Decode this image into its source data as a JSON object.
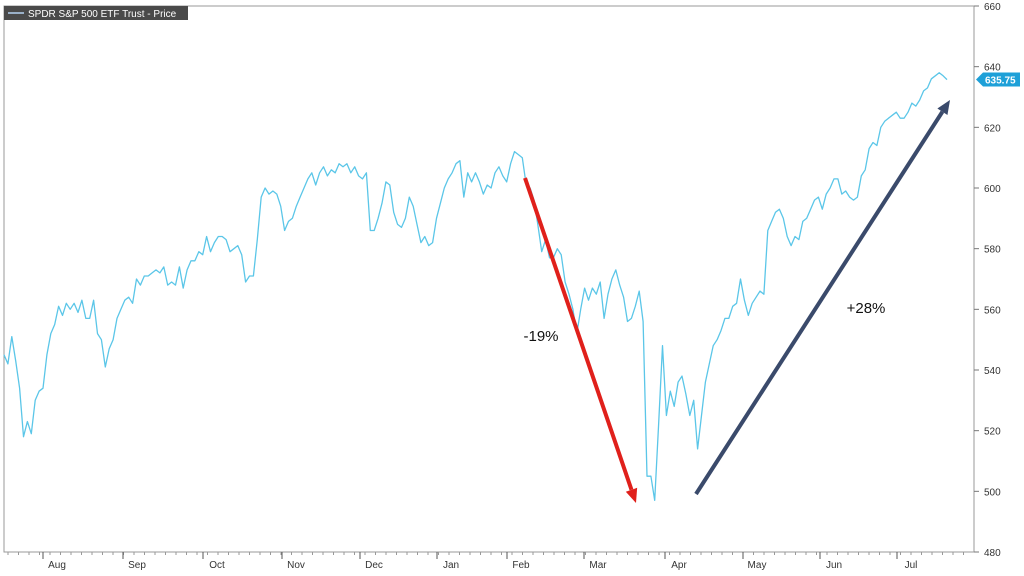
{
  "chart_data": {
    "type": "line",
    "legend": "SPDR S&P 500 ETF Trust - Price",
    "legend_placement": "top-left",
    "grid": false,
    "ylim": [
      480,
      660
    ],
    "y_ticks": [
      480,
      500,
      520,
      540,
      560,
      580,
      600,
      620,
      640,
      660
    ],
    "month_labels": [
      "Aug",
      "Sep",
      "Oct",
      "Nov",
      "Dec",
      "Jan",
      "Feb",
      "Mar",
      "Apr",
      "May",
      "Jun",
      "Jul"
    ],
    "last_price_label": "635.75",
    "line_color": "#5bc6e8",
    "series": [
      {
        "name": "SPDR S&P 500 ETF Trust - Price",
        "values": [
          545,
          542,
          551,
          543,
          534,
          518,
          523,
          519,
          530,
          533,
          534,
          545,
          552,
          555,
          561,
          558,
          562,
          560,
          562,
          559,
          563,
          557,
          557,
          563,
          552,
          550,
          541,
          547,
          550,
          557,
          560,
          563,
          564,
          562,
          570,
          568,
          571,
          571,
          572,
          573,
          572,
          574,
          568,
          569,
          568,
          574,
          567,
          573,
          576,
          576,
          579,
          578,
          584,
          579,
          582,
          584,
          584,
          583,
          579,
          580,
          581,
          578,
          569,
          571,
          571,
          583,
          597,
          600,
          598,
          599,
          598,
          594,
          586,
          589,
          590,
          594,
          597,
          600,
          603,
          605,
          601,
          605,
          607,
          604,
          606,
          605,
          608,
          607,
          608,
          605,
          607,
          604,
          603,
          605,
          586,
          586,
          590,
          595,
          602,
          601,
          592,
          588,
          587,
          590,
          597,
          594,
          588,
          582,
          584,
          581,
          582,
          590,
          595,
          600,
          603,
          605,
          608,
          609,
          597,
          605,
          602,
          605,
          602,
          598,
          601,
          600,
          605,
          607,
          604,
          602,
          608,
          612,
          611,
          610,
          601,
          600,
          596,
          588,
          579,
          583,
          577,
          577,
          580,
          578,
          569,
          565,
          560,
          552,
          560,
          567,
          563,
          567,
          565,
          569,
          557,
          565,
          570,
          573,
          568,
          564,
          556,
          557,
          561,
          566,
          556,
          505,
          505,
          497,
          522,
          548,
          525,
          533,
          528,
          536,
          538,
          532,
          525,
          530,
          514,
          525,
          536,
          542,
          548,
          550,
          553,
          557,
          557,
          561,
          562,
          570,
          563,
          558,
          562,
          564,
          566,
          565,
          586,
          589,
          592,
          593,
          590,
          584,
          581,
          584,
          583,
          589,
          590,
          593,
          596,
          597,
          593,
          598,
          600,
          603,
          603,
          598,
          599,
          597,
          596,
          597,
          604,
          606,
          613,
          615,
          614,
          620,
          622,
          623,
          624,
          625,
          623,
          623,
          625,
          628,
          627,
          629,
          632,
          633,
          636,
          637,
          638,
          637,
          635.75
        ]
      }
    ],
    "annotations": [
      {
        "label": "-19%",
        "color": "#e0201b",
        "direction": "down"
      },
      {
        "label": "+28%",
        "color": "#3a4a6b",
        "direction": "up"
      }
    ]
  }
}
